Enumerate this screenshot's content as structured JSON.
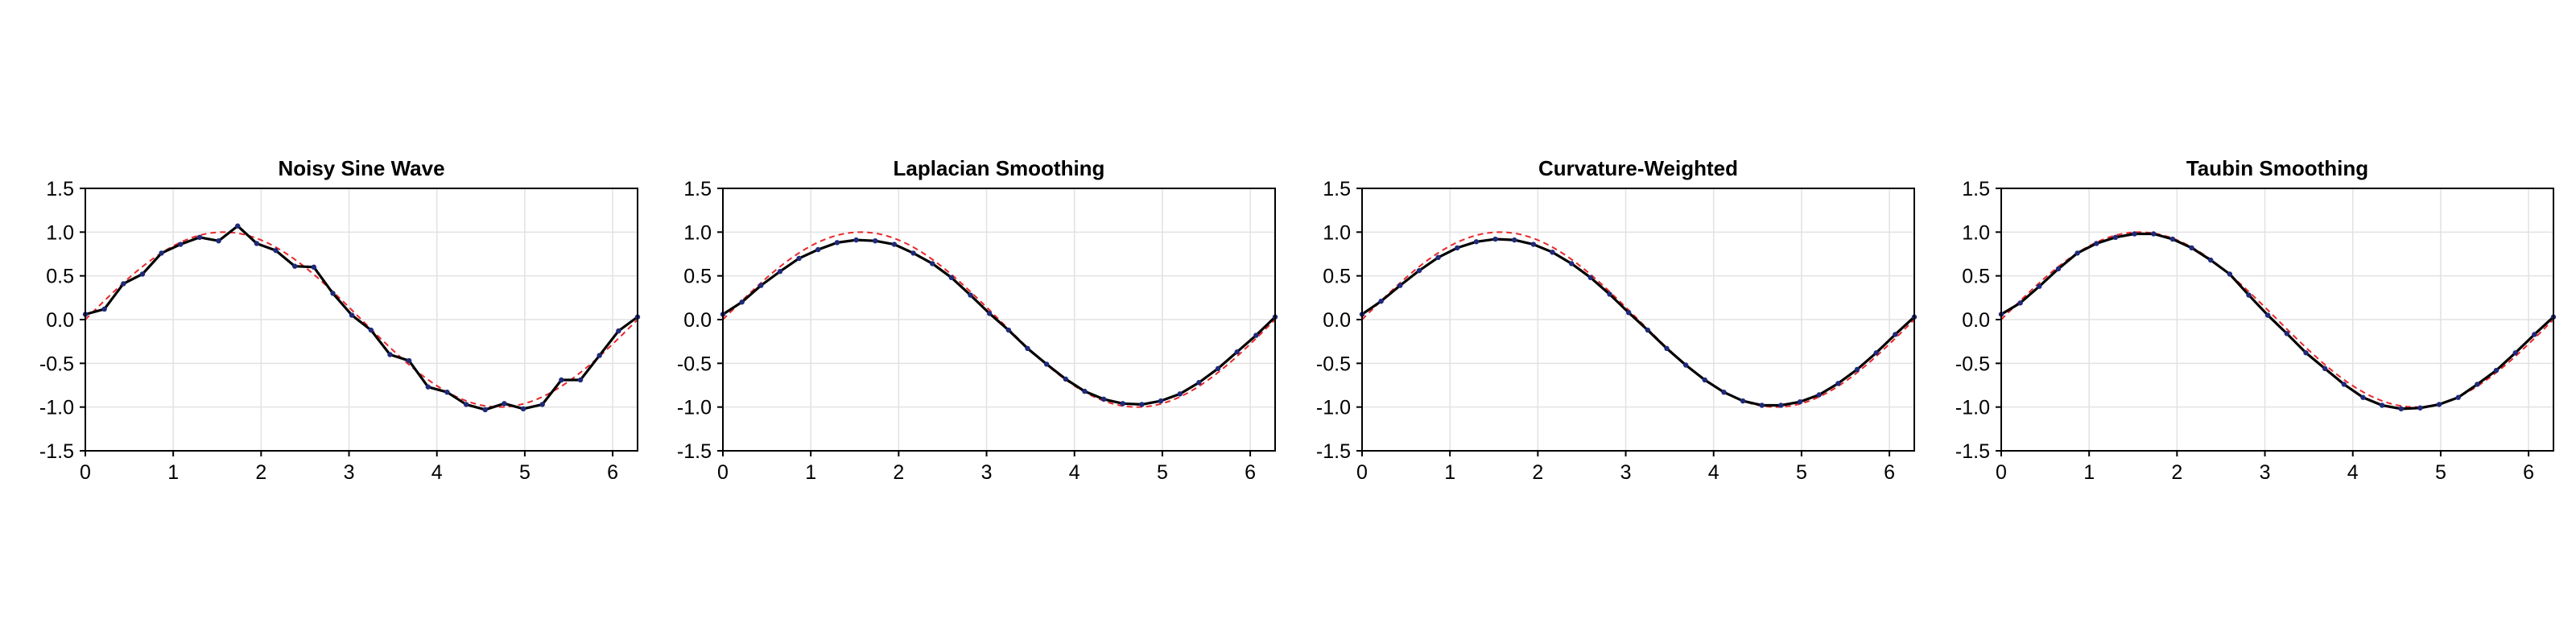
{
  "colors": {
    "data_line": "#000000",
    "data_marker": "#1f2a7a",
    "reference_line": "#e8282b",
    "grid": "#e2e2e2",
    "axis": "#000000"
  },
  "chart_data": [
    {
      "type": "line",
      "title": "Noisy Sine Wave",
      "xlabel": "",
      "ylabel": "",
      "xlim": [
        0,
        6.2832
      ],
      "ylim": [
        -1.5,
        1.5
      ],
      "xticks": [
        0,
        1,
        2,
        3,
        4,
        5,
        6
      ],
      "yticks": [
        -1.5,
        -1.0,
        -0.5,
        0.0,
        0.5,
        1.0,
        1.5
      ],
      "ytick_labels": [
        "-1.5",
        "-1.0",
        "-0.5",
        "0.0",
        "0.5",
        "1.0",
        "1.5"
      ],
      "grid": true,
      "legend": "none",
      "series": [
        {
          "style": "solid with point markers",
          "x": [
            0,
            0.2167,
            0.4333,
            0.65,
            0.8666,
            1.0833,
            1.3,
            1.5166,
            1.7333,
            1.9499,
            2.1666,
            2.3833,
            2.5999,
            2.8166,
            3.0332,
            3.2499,
            3.4666,
            3.6832,
            3.8999,
            4.1166,
            4.3332,
            4.5499,
            4.7665,
            4.9832,
            5.1999,
            5.4165,
            5.6332,
            5.8499,
            6.0665,
            6.2832
          ],
          "y": [
            0.06,
            0.12,
            0.41,
            0.52,
            0.76,
            0.86,
            0.94,
            0.9,
            1.07,
            0.87,
            0.79,
            0.61,
            0.6,
            0.3,
            0.05,
            -0.12,
            -0.4,
            -0.47,
            -0.77,
            -0.83,
            -0.97,
            -1.03,
            -0.96,
            -1.02,
            -0.97,
            -0.69,
            -0.69,
            -0.41,
            -0.13,
            0.03
          ]
        },
        {
          "style": "dashed reference sin(x)",
          "function": "sin"
        }
      ]
    },
    {
      "type": "line",
      "title": "Laplacian Smoothing",
      "xlabel": "",
      "ylabel": "",
      "xlim": [
        0,
        6.2832
      ],
      "ylim": [
        -1.5,
        1.5
      ],
      "xticks": [
        0,
        1,
        2,
        3,
        4,
        5,
        6
      ],
      "yticks": [
        -1.5,
        -1.0,
        -0.5,
        0.0,
        0.5,
        1.0,
        1.5
      ],
      "ytick_labels": [
        "-1.5",
        "-1.0",
        "-0.5",
        "0.0",
        "0.5",
        "1.0",
        "1.5"
      ],
      "grid": true,
      "legend": "none",
      "series": [
        {
          "style": "solid with point markers",
          "x": [
            0,
            0.2167,
            0.4333,
            0.65,
            0.8666,
            1.0833,
            1.3,
            1.5166,
            1.7333,
            1.9499,
            2.1666,
            2.3833,
            2.5999,
            2.8166,
            3.0332,
            3.2499,
            3.4666,
            3.6832,
            3.8999,
            4.1166,
            4.3332,
            4.5499,
            4.7665,
            4.9832,
            5.1999,
            5.4165,
            5.6332,
            5.8499,
            6.0665,
            6.2832
          ],
          "y": [
            0.06,
            0.2,
            0.39,
            0.55,
            0.7,
            0.8,
            0.88,
            0.91,
            0.9,
            0.86,
            0.76,
            0.64,
            0.48,
            0.28,
            0.07,
            -0.12,
            -0.33,
            -0.51,
            -0.68,
            -0.82,
            -0.91,
            -0.96,
            -0.97,
            -0.93,
            -0.85,
            -0.72,
            -0.56,
            -0.37,
            -0.18,
            0.03
          ]
        },
        {
          "style": "dashed reference sin(x)",
          "function": "sin"
        }
      ]
    },
    {
      "type": "line",
      "title": "Curvature-Weighted",
      "xlabel": "",
      "ylabel": "",
      "xlim": [
        0,
        6.2832
      ],
      "ylim": [
        -1.5,
        1.5
      ],
      "xticks": [
        0,
        1,
        2,
        3,
        4,
        5,
        6
      ],
      "yticks": [
        -1.5,
        -1.0,
        -0.5,
        0.0,
        0.5,
        1.0,
        1.5
      ],
      "ytick_labels": [
        "-1.5",
        "-1.0",
        "-0.5",
        "0.0",
        "0.5",
        "1.0",
        "1.5"
      ],
      "grid": true,
      "legend": "none",
      "series": [
        {
          "style": "solid with point markers",
          "x": [
            0,
            0.2167,
            0.4333,
            0.65,
            0.8666,
            1.0833,
            1.3,
            1.5166,
            1.7333,
            1.9499,
            2.1666,
            2.3833,
            2.5999,
            2.8166,
            3.0332,
            3.2499,
            3.4666,
            3.6832,
            3.8999,
            4.1166,
            4.3332,
            4.5499,
            4.7665,
            4.9832,
            5.1999,
            5.4165,
            5.6332,
            5.8499,
            6.0665,
            6.2832
          ],
          "y": [
            0.06,
            0.21,
            0.39,
            0.56,
            0.71,
            0.82,
            0.89,
            0.92,
            0.91,
            0.86,
            0.77,
            0.64,
            0.48,
            0.29,
            0.08,
            -0.12,
            -0.33,
            -0.52,
            -0.69,
            -0.83,
            -0.93,
            -0.98,
            -0.98,
            -0.94,
            -0.86,
            -0.73,
            -0.57,
            -0.38,
            -0.17,
            0.03
          ]
        },
        {
          "style": "dashed reference sin(x)",
          "function": "sin"
        }
      ]
    },
    {
      "type": "line",
      "title": "Taubin Smoothing",
      "xlabel": "",
      "ylabel": "",
      "xlim": [
        0,
        6.2832
      ],
      "ylim": [
        -1.5,
        1.5
      ],
      "xticks": [
        0,
        1,
        2,
        3,
        4,
        5,
        6
      ],
      "yticks": [
        -1.5,
        -1.0,
        -0.5,
        0.0,
        0.5,
        1.0,
        1.5
      ],
      "ytick_labels": [
        "-1.5",
        "-1.0",
        "-0.5",
        "0.0",
        "0.5",
        "1.0",
        "1.5"
      ],
      "grid": true,
      "legend": "none",
      "series": [
        {
          "style": "solid with point markers",
          "x": [
            0,
            0.2167,
            0.4333,
            0.65,
            0.8666,
            1.0833,
            1.3,
            1.5166,
            1.7333,
            1.9499,
            2.1666,
            2.3833,
            2.5999,
            2.8166,
            3.0332,
            3.2499,
            3.4666,
            3.6832,
            3.8999,
            4.1166,
            4.3332,
            4.5499,
            4.7665,
            4.9832,
            5.1999,
            5.4165,
            5.6332,
            5.8499,
            6.0665,
            6.2832
          ],
          "y": [
            0.06,
            0.19,
            0.38,
            0.58,
            0.76,
            0.87,
            0.94,
            0.98,
            0.98,
            0.92,
            0.82,
            0.68,
            0.52,
            0.28,
            0.05,
            -0.16,
            -0.38,
            -0.56,
            -0.74,
            -0.89,
            -0.98,
            -1.02,
            -1.01,
            -0.97,
            -0.89,
            -0.74,
            -0.58,
            -0.38,
            -0.17,
            0.03
          ]
        },
        {
          "style": "dashed reference sin(x)",
          "function": "sin"
        }
      ]
    }
  ]
}
